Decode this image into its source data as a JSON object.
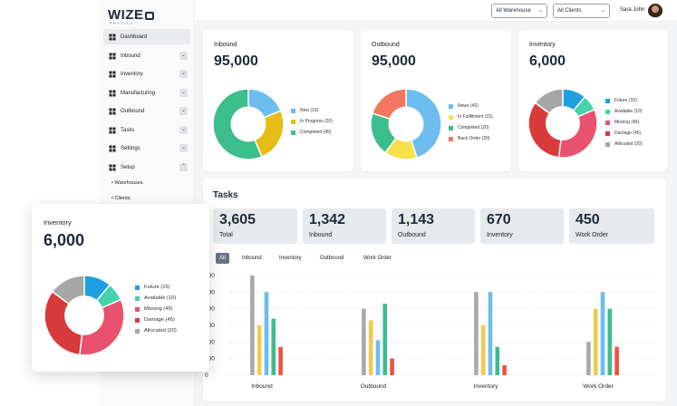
{
  "brand": {
    "name": "WIZE",
    "sub": "PRFFILL"
  },
  "sidebar": {
    "items": [
      {
        "label": "Dashboard",
        "icon": "grid-icon",
        "active": true
      },
      {
        "label": "Inbound",
        "icon": "inbox-icon"
      },
      {
        "label": "Inventory",
        "icon": "inventory-icon"
      },
      {
        "label": "Manufacturing",
        "icon": "factory-icon"
      },
      {
        "label": "Outbound",
        "icon": "truck-icon"
      },
      {
        "label": "Tasks",
        "icon": "tasks-icon"
      },
      {
        "label": "Settings",
        "icon": "sliders-icon"
      },
      {
        "label": "Setup",
        "icon": "gear-icon"
      }
    ],
    "sub_items": [
      "Warehouses",
      "Clients"
    ]
  },
  "topbar": {
    "warehouse": "All Warehouse",
    "clients": "All Clients",
    "user": "Sara John"
  },
  "cards": {
    "inbound": {
      "title": "Inbound",
      "value": "95,000",
      "legend": [
        "New (15)",
        "In Progress (20)",
        "Completed (45)"
      ],
      "values": [
        15,
        20,
        45
      ],
      "colors": [
        "#6cbdee",
        "#e6bd16",
        "#3bbd8c"
      ]
    },
    "outbound": {
      "title": "Outbound",
      "value": "95,000",
      "legend": [
        "News (45)",
        "In Fulfillment (15)",
        "Completed (20)",
        "Back Order (20)"
      ],
      "values": [
        45,
        15,
        20,
        20
      ],
      "colors": [
        "#6cbdee",
        "#f7e14a",
        "#3bbd8c",
        "#f4765e"
      ]
    },
    "inventory": {
      "title": "Inventory",
      "value": "6,000",
      "legend": [
        "Future (15)",
        "Available (10)",
        "Missing (45)",
        "Damage (45)",
        "Allocated (20)"
      ],
      "values": [
        15,
        10,
        45,
        45,
        20
      ],
      "colors": [
        "#1e9fe0",
        "#45d3a9",
        "#e8526e",
        "#d93a3a",
        "#a6a6a6"
      ]
    }
  },
  "tasks": {
    "title": "Tasks",
    "stats": [
      {
        "value": "3,605",
        "label": "Total"
      },
      {
        "value": "1,342",
        "label": "Inbound"
      },
      {
        "value": "1,143",
        "label": "Outbound"
      },
      {
        "value": "670",
        "label": "Inventory"
      },
      {
        "value": "450",
        "label": "Work Order"
      }
    ],
    "filters": [
      "All",
      "Inbound",
      "Inventory",
      "Outbound",
      "Work Order"
    ]
  },
  "float_card": {
    "title": "Inventory",
    "value": "6,000",
    "legend": [
      "Future (15)",
      "Available (10)",
      "Missing (45)",
      "Damage (45)",
      "Allocated (20)"
    ]
  },
  "chart_data": {
    "type": "bar",
    "categories": [
      "Inbound",
      "Outbound",
      "Inventory",
      "Work Order"
    ],
    "ylim": [
      0,
      600
    ],
    "yticks": [
      0,
      100,
      200,
      300,
      400,
      500,
      600
    ],
    "series": [
      {
        "color": "#a9a9a9",
        "values": [
          600,
          400,
          500,
          200
        ]
      },
      {
        "color": "#f2c94c",
        "values": [
          300,
          330,
          300,
          400
        ]
      },
      {
        "color": "#6cbdee",
        "values": [
          500,
          210,
          500,
          500
        ]
      },
      {
        "color": "#3bbd8c",
        "values": [
          340,
          430,
          170,
          400
        ]
      },
      {
        "color": "#e8553e",
        "values": [
          170,
          100,
          60,
          170
        ]
      }
    ],
    "grid": true
  }
}
